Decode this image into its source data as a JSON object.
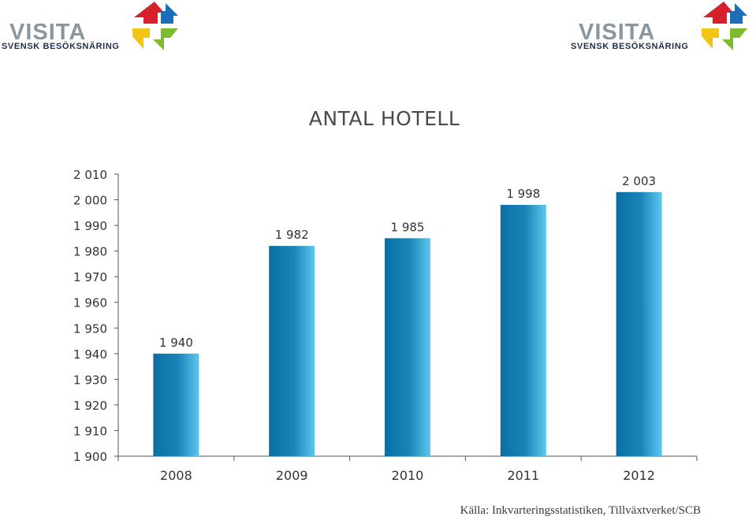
{
  "logo": {
    "wordmark": "VISITA",
    "tagline": "SVENSK BESÖKSNÄRING",
    "colors": [
      "#d6202b",
      "#1b6fb8",
      "#f2c418",
      "#7dbb2f"
    ]
  },
  "source": "Källa: Inkvarteringsstatistiken, Tillväxtverket/SCB",
  "chart_data": {
    "type": "bar",
    "title": "ANTAL HOTELL",
    "xlabel": "",
    "ylabel": "",
    "categories": [
      "2008",
      "2009",
      "2010",
      "2011",
      "2012"
    ],
    "values": [
      1940,
      1982,
      1985,
      1998,
      2003
    ],
    "value_labels": [
      "1 940",
      "1 982",
      "1 985",
      "1 998",
      "2 003"
    ],
    "ylim": [
      1900,
      2010
    ],
    "yticks": [
      {
        "value": 1900,
        "label": "1 900"
      },
      {
        "value": 1910,
        "label": "1 910"
      },
      {
        "value": 1920,
        "label": "1 920"
      },
      {
        "value": 1930,
        "label": "1 930"
      },
      {
        "value": 1940,
        "label": "1 940"
      },
      {
        "value": 1950,
        "label": "1 950"
      },
      {
        "value": 1960,
        "label": "1 960"
      },
      {
        "value": 1970,
        "label": "1 970"
      },
      {
        "value": 1980,
        "label": "1 980"
      },
      {
        "value": 1990,
        "label": "1 990"
      },
      {
        "value": 2000,
        "label": "2 000"
      },
      {
        "value": 2010,
        "label": "2 010"
      }
    ],
    "grid": false,
    "legend": "none",
    "bar_color": "#1a86b8"
  }
}
